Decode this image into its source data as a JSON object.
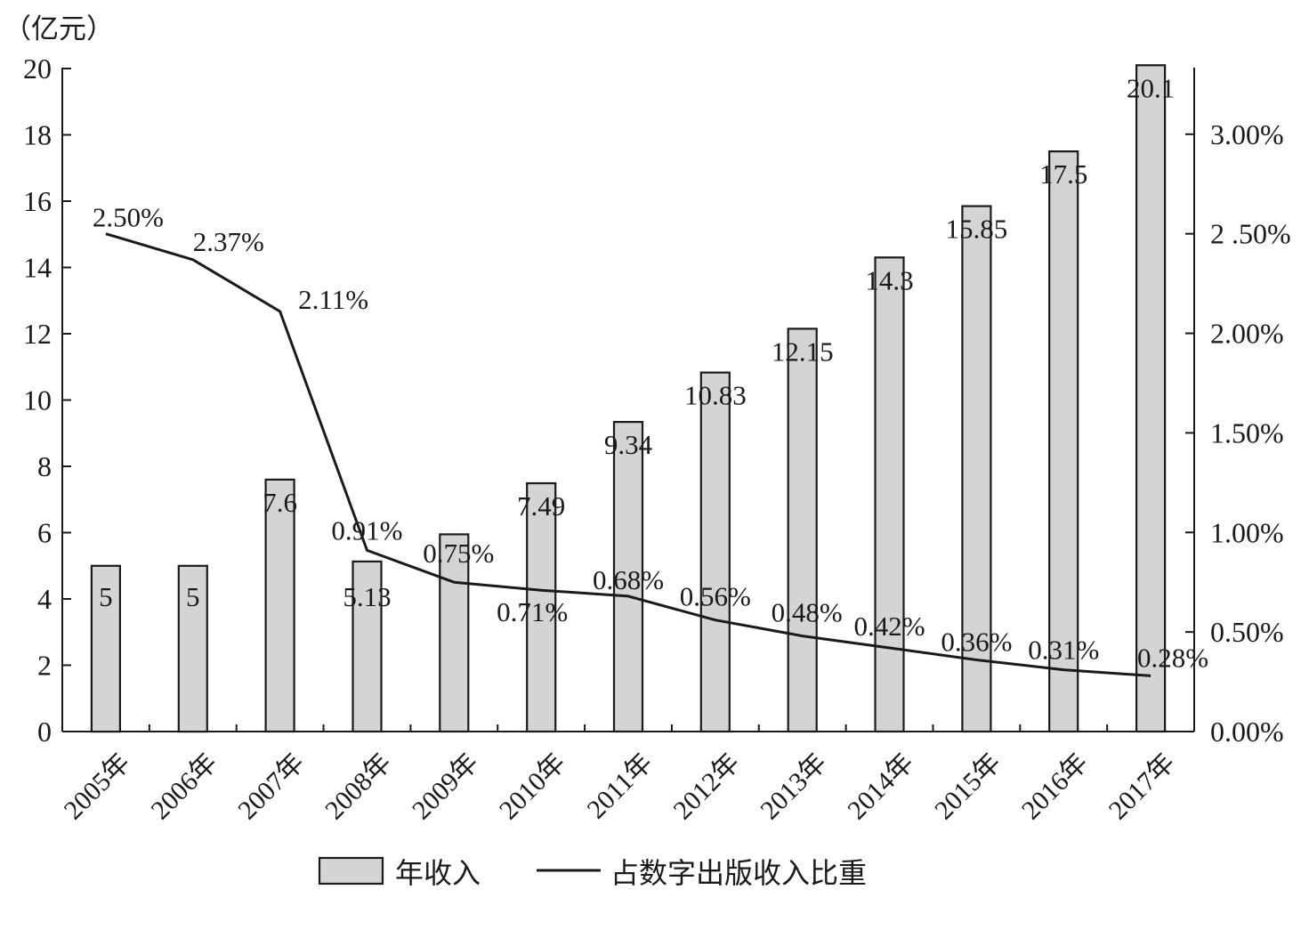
{
  "chart_data": {
    "type": "bar",
    "y_unit_label": "（亿元）",
    "categories": [
      "2005年",
      "2006年",
      "2007年",
      "2008年",
      "2009年",
      "2010年",
      "2011年",
      "2012年",
      "2013年",
      "2014年",
      "2015年",
      "2016年",
      "2017年"
    ],
    "series": [
      {
        "name": "年收入",
        "type": "bar",
        "axis": "left",
        "values": [
          5,
          5,
          7.6,
          5.13,
          5.95,
          7.49,
          9.34,
          10.83,
          12.15,
          14.3,
          15.85,
          17.5,
          20.1
        ],
        "labels": [
          "5",
          "5",
          "7.6",
          "5.13",
          "",
          "7.49",
          "9.34",
          "10.83",
          "12.15",
          "14.3",
          "15.85",
          "17.5",
          "20.1"
        ]
      },
      {
        "name": "占数字出版收入比重",
        "type": "line",
        "axis": "right",
        "values": [
          2.5,
          2.37,
          2.11,
          0.91,
          0.75,
          0.71,
          0.68,
          0.56,
          0.48,
          0.42,
          0.36,
          0.31,
          0.28
        ],
        "labels": [
          "2.50%",
          "2.37%",
          "2.11%",
          "0.91%",
          "0.75%",
          "0.71%",
          "0.68%",
          "0.56%",
          "0.48%",
          "0.42%",
          "0.36%",
          "0.31%",
          "0.28%"
        ]
      }
    ],
    "y_left": {
      "ylim": [
        0,
        20
      ],
      "ticks": [
        "0",
        "2",
        "4",
        "6",
        "8",
        "10",
        "12",
        "14",
        "16",
        "18",
        "20"
      ]
    },
    "y_right": {
      "ylim": [
        0,
        3.33
      ],
      "ticks": [
        "0.00%",
        "0.50%",
        "1.00%",
        "1.50%",
        "2.00%",
        "2 .50%",
        "3.00%"
      ],
      "tick_values": [
        0,
        0.5,
        1.0,
        1.5,
        2.0,
        2.5,
        3.0
      ]
    },
    "legend": {
      "placement": "bottom-center",
      "entries": [
        "年收入",
        "占数字出版收入比重"
      ]
    },
    "grid": false,
    "colors": {
      "bar_fill": "#d4d4d4",
      "line": "#1a1a1a",
      "axis": "#1a1a1a"
    }
  }
}
